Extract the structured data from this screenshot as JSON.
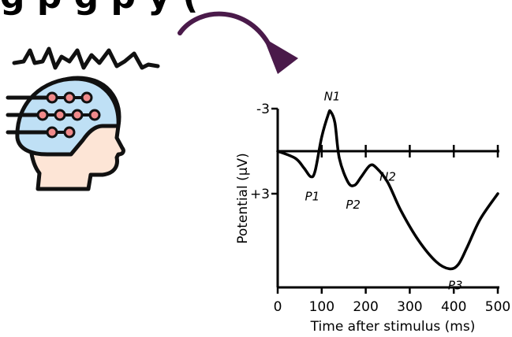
{
  "header": {
    "title_fragment": "g                    p  g  p  y ("
  },
  "icon": {
    "name": "eeg-cap-head-icon",
    "colors": {
      "cap": "#bfe0f5",
      "skin": "#fde5d6",
      "electrode": "#f08a8a",
      "outline": "#111111"
    }
  },
  "arrow": {
    "color": "#4a1a4a"
  },
  "chart_data": {
    "type": "line",
    "xlabel": "Time after stimulus (ms)",
    "ylabel": "Potential (µV)",
    "x_ticks": [
      "0",
      "100",
      "200",
      "300",
      "400",
      "500"
    ],
    "y_ticks": [
      "-3",
      "+3"
    ],
    "y_inverted": true,
    "xlim": [
      0,
      500
    ],
    "series": [
      {
        "x": [
          0,
          40,
          60,
          75,
          85,
          100,
          115,
          120,
          130,
          140,
          160,
          175,
          190,
          210,
          225,
          250,
          280,
          320,
          360,
          390,
          410,
          430,
          460,
          500
        ],
        "y": [
          0,
          0.5,
          1.2,
          1.8,
          1.4,
          -1.0,
          -2.6,
          -2.8,
          -2.0,
          0.5,
          2.2,
          2.4,
          1.8,
          1.0,
          1.2,
          2.2,
          4.2,
          6.3,
          7.8,
          8.3,
          8.0,
          6.8,
          4.8,
          3.0
        ]
      }
    ],
    "peaks": [
      {
        "label": "P1",
        "x": 75
      },
      {
        "label": "N1",
        "x": 120
      },
      {
        "label": "P2",
        "x": 175
      },
      {
        "label": "N2",
        "x": 225
      },
      {
        "label": "P3",
        "x": 400
      }
    ],
    "color": "#000000"
  }
}
